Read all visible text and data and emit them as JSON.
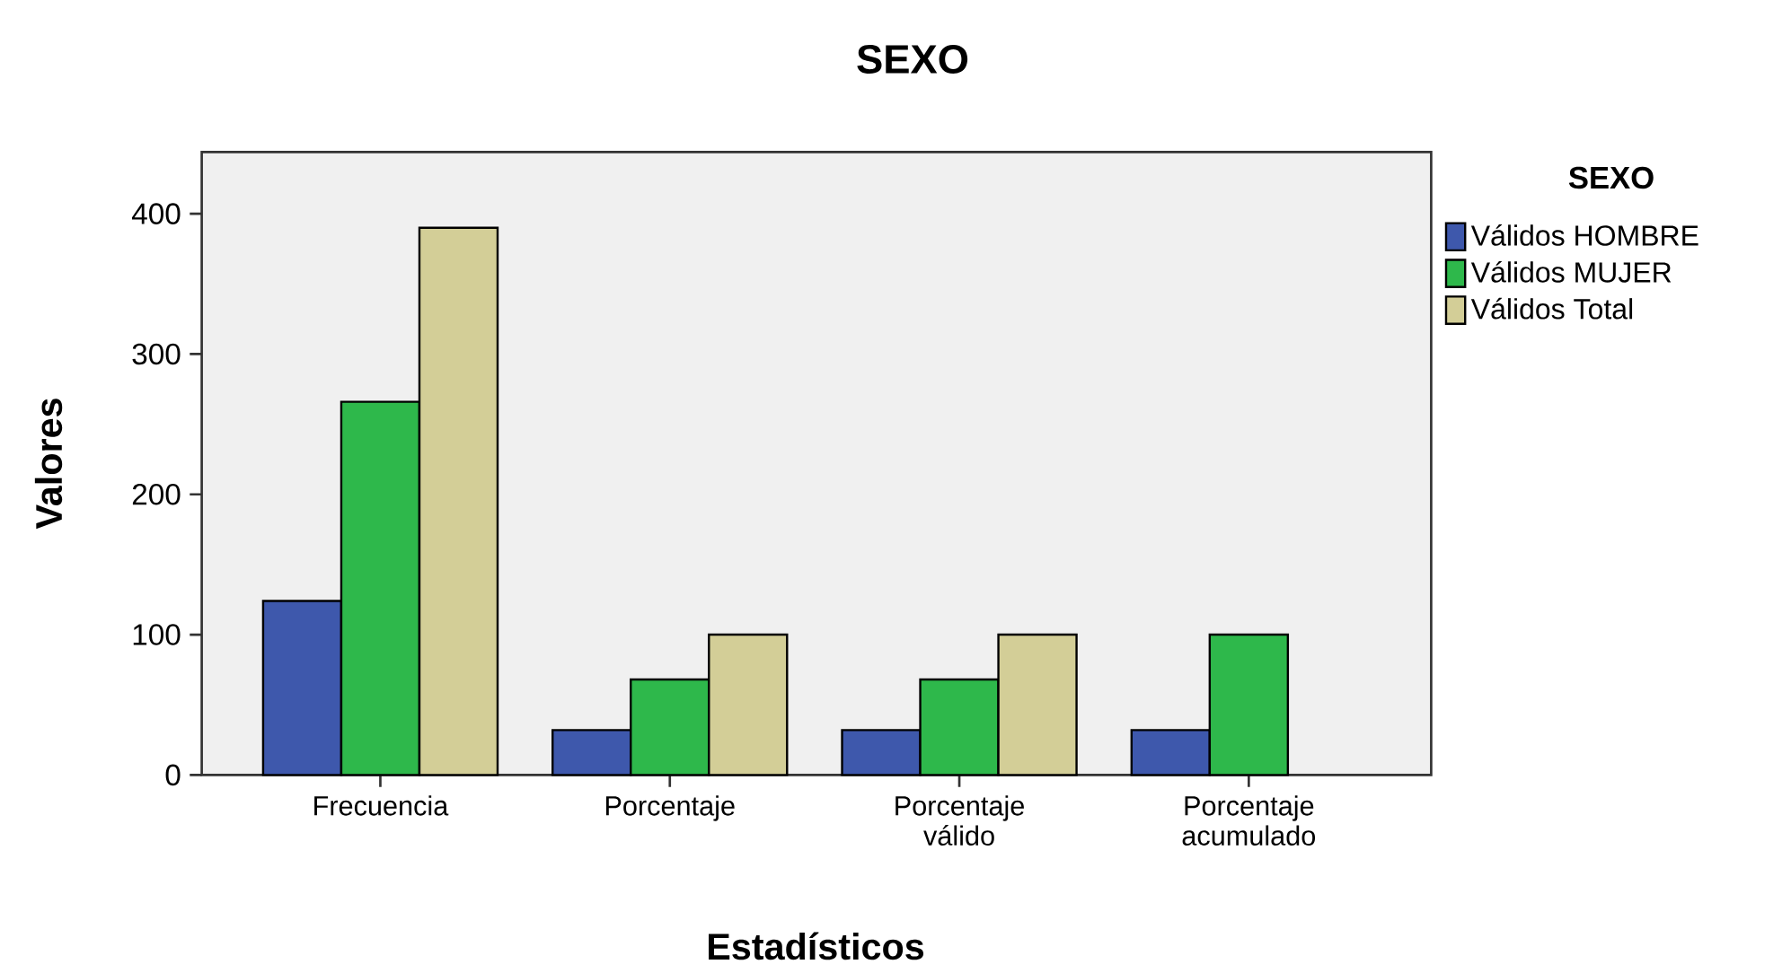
{
  "chart_data": {
    "type": "bar",
    "title": "SEXO",
    "xlabel": "Estadísticos",
    "ylabel": "Valores",
    "legend_title": "SEXO",
    "categories": [
      "Frecuencia",
      "Porcentaje",
      "Porcentaje válido",
      "Porcentaje acumulado"
    ],
    "series": [
      {
        "name": "Válidos HOMBRE",
        "color": "#3e58ac",
        "values": [
          124,
          32,
          32,
          32
        ]
      },
      {
        "name": "Válidos MUJER",
        "color": "#2eb84b",
        "values": [
          266,
          68,
          68,
          100
        ]
      },
      {
        "name": "Válidos Total",
        "color": "#d3ce97",
        "values": [
          390,
          100,
          100,
          null
        ]
      }
    ],
    "ylim": [
      0,
      444
    ],
    "yticks": [
      0,
      100,
      200,
      300,
      400
    ],
    "legend": "right"
  }
}
